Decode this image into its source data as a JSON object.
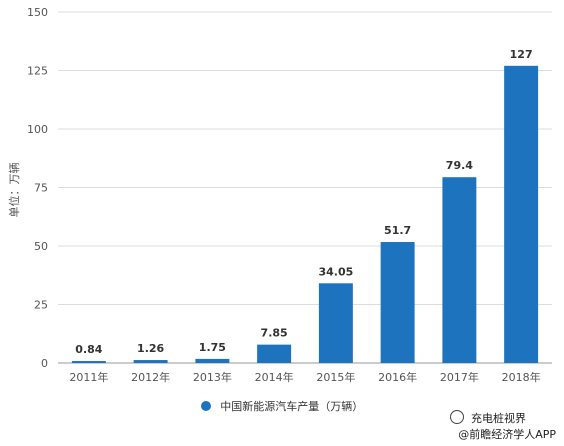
{
  "chart_data": {
    "type": "bar",
    "categories": [
      "2011年",
      "2012年",
      "2013年",
      "2014年",
      "2015年",
      "2016年",
      "2017年",
      "2018年"
    ],
    "series": [
      {
        "name": "中国新能源汽车产量（万辆）",
        "values": [
          0.84,
          1.26,
          1.75,
          7.85,
          34.05,
          51.7,
          79.4,
          127
        ]
      }
    ],
    "data_labels": [
      "0.84",
      "1.26",
      "1.75",
      "7.85",
      "34.05",
      "51.7",
      "79.4",
      "127"
    ],
    "ylabel": "单位：万辆",
    "ylim": [
      0,
      150
    ],
    "yticks": [
      0,
      25,
      50,
      75,
      100,
      125,
      150
    ],
    "grid": true,
    "legend_position": "bottom",
    "bar_color": "#1e73be"
  },
  "watermark": {
    "line1": "充电桩视界",
    "line2": "@前瞻经济学人APP"
  }
}
